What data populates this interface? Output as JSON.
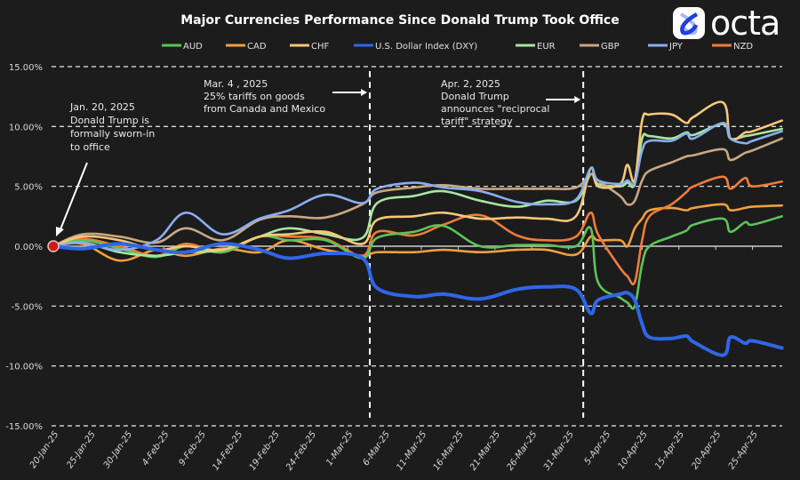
{
  "brand": {
    "name": "octa"
  },
  "chart_data": {
    "type": "line",
    "title": "Major Currencies Performance Since Donald Trump Took Office",
    "xlabel": "",
    "ylabel": "",
    "ylim": [
      -15,
      15
    ],
    "yticks": [
      "15.00%",
      "10.00%",
      "5.00%",
      "0.00%",
      "-5.00%",
      "-10.00%",
      "-15.00%"
    ],
    "ytick_values": [
      15,
      10,
      5,
      0,
      -5,
      -10,
      -15
    ],
    "xticks": [
      "20-Jan-25",
      "25-Jan-25",
      "30-Jan-25",
      "4-Feb-25",
      "9-Feb-25",
      "14-Feb-25",
      "19-Feb-25",
      "24-Feb-25",
      "1-Mar-25",
      "6-Mar-25",
      "11-Mar-25",
      "16-Mar-25",
      "21-Mar-25",
      "26-Mar-25",
      "31-Mar-25",
      "5-Apr-25",
      "10-Apr-25",
      "15-Apr-25",
      "20-Apr-25",
      "25-Apr-25"
    ],
    "grid": "horizontal dashed",
    "legend": "top",
    "x": [
      "2025-01-20",
      "2025-01-24",
      "2025-01-29",
      "2025-02-03",
      "2025-02-07",
      "2025-02-12",
      "2025-02-17",
      "2025-02-21",
      "2025-02-26",
      "2025-03-03",
      "2025-03-05",
      "2025-03-10",
      "2025-03-14",
      "2025-03-19",
      "2025-03-24",
      "2025-03-28",
      "2025-04-01",
      "2025-04-03",
      "2025-04-04",
      "2025-04-07",
      "2025-04-08",
      "2025-04-09",
      "2025-04-10",
      "2025-04-11",
      "2025-04-14",
      "2025-04-16",
      "2025-04-17",
      "2025-04-21",
      "2025-04-22",
      "2025-04-24",
      "2025-04-25",
      "2025-04-29"
    ],
    "series": [
      {
        "name": "AUD",
        "color": "#5cc45a",
        "values": [
          0,
          0.5,
          -0.2,
          -0.9,
          0.0,
          -0.5,
          0.8,
          0.5,
          0.5,
          -1.0,
          0.7,
          1.2,
          1.7,
          0.0,
          0.1,
          0.1,
          0.0,
          1.5,
          -3.0,
          -4.3,
          -4.7,
          -5.0,
          -1.5,
          0.0,
          0.8,
          1.3,
          1.8,
          2.3,
          1.2,
          2.0,
          1.8,
          2.5
        ]
      },
      {
        "name": "CAD",
        "color": "#f0a040",
        "values": [
          0,
          0.2,
          -1.2,
          -0.3,
          -0.8,
          -0.2,
          -0.5,
          0.5,
          -0.3,
          -0.8,
          -0.5,
          -0.5,
          -0.3,
          -0.5,
          -0.3,
          -0.3,
          -0.7,
          0.8,
          0.5,
          0.5,
          0.0,
          1.5,
          2.3,
          3.0,
          3.2,
          3.0,
          3.2,
          3.5,
          3.0,
          3.2,
          3.3,
          3.4
        ]
      },
      {
        "name": "CHF",
        "color": "#f7c878",
        "values": [
          0,
          0.8,
          0.5,
          -0.3,
          0,
          -0.3,
          0.8,
          1.0,
          1.2,
          0.2,
          2.2,
          2.5,
          2.8,
          2.3,
          2.4,
          2.3,
          2.5,
          6.5,
          5.0,
          5.2,
          6.8,
          5.5,
          10.5,
          11.0,
          11.0,
          10.3,
          10.8,
          12.0,
          9.0,
          9.5,
          9.6,
          10.5
        ]
      },
      {
        "name": "U.S. Dollar Index (DXY)",
        "color": "#2f66e8",
        "values": [
          0,
          -0.2,
          0.2,
          -0.3,
          -0.5,
          0.2,
          -0.3,
          -1.0,
          -0.6,
          -1.0,
          -3.5,
          -4.2,
          -4.0,
          -4.4,
          -3.6,
          -3.4,
          -3.6,
          -5.6,
          -4.5,
          -4.0,
          -3.9,
          -4.5,
          -6.5,
          -7.6,
          -7.7,
          -7.5,
          -8.0,
          -9.1,
          -7.6,
          -8.1,
          -7.9,
          -8.5
        ]
      },
      {
        "name": "EUR",
        "color": "#a8e6a0",
        "values": [
          0,
          0.3,
          -0.5,
          -0.8,
          -0.5,
          -0.3,
          0.8,
          1.5,
          1.0,
          0.7,
          3.6,
          4.2,
          4.6,
          3.8,
          3.3,
          3.8,
          3.8,
          6.0,
          5.2,
          5.0,
          5.3,
          5.2,
          9.0,
          9.2,
          9.0,
          9.5,
          9.3,
          10.2,
          9.0,
          9.2,
          9.3,
          9.8
        ]
      },
      {
        "name": "GBP",
        "color": "#c8a882",
        "values": [
          0,
          1.0,
          0.8,
          0.3,
          1.5,
          0.5,
          2.2,
          2.5,
          2.4,
          3.5,
          4.5,
          4.9,
          5.1,
          4.8,
          4.8,
          4.8,
          4.9,
          6.0,
          5.5,
          4.2,
          3.5,
          3.8,
          5.5,
          6.3,
          7.0,
          7.5,
          7.6,
          8.1,
          7.2,
          7.8,
          8.0,
          9.0
        ]
      },
      {
        "name": "JPY",
        "color": "#8aaef0",
        "values": [
          0,
          0.3,
          -0.3,
          0.5,
          2.8,
          1.0,
          2.3,
          3.0,
          4.3,
          3.6,
          4.8,
          5.3,
          4.9,
          4.6,
          3.7,
          3.5,
          3.9,
          6.5,
          5.5,
          5.2,
          5.5,
          5.3,
          8.0,
          8.8,
          8.8,
          9.4,
          9.0,
          10.3,
          9.0,
          8.6,
          8.8,
          9.6
        ]
      },
      {
        "name": "NZD",
        "color": "#f07c3a",
        "values": [
          0,
          0.6,
          0.0,
          -0.8,
          0.2,
          -0.5,
          0.8,
          0.8,
          0.6,
          -0.8,
          1.2,
          0.9,
          1.8,
          2.6,
          0.9,
          0.5,
          0.8,
          2.8,
          1.0,
          -1.8,
          -2.5,
          -3.0,
          0.5,
          2.5,
          3.5,
          4.5,
          5.0,
          5.8,
          4.8,
          5.7,
          5.0,
          5.4
        ]
      }
    ],
    "events": [
      {
        "date": "2025-03-04",
        "lines": [
          "Mar. 4 , 2025",
          "25% tariffs on goods",
          "from Canada and Mexico"
        ]
      },
      {
        "date": "2025-04-02",
        "lines": [
          "Apr. 2, 2025",
          "Donald Trump",
          "announces \"reciprocal",
          "tariff\" strategy"
        ]
      }
    ],
    "start_annotation": {
      "date": "2025-01-20",
      "value": 0,
      "lines": [
        "Jan. 20, 2025",
        "Donald Trump is",
        "formally sworn-in",
        "to office"
      ]
    }
  }
}
